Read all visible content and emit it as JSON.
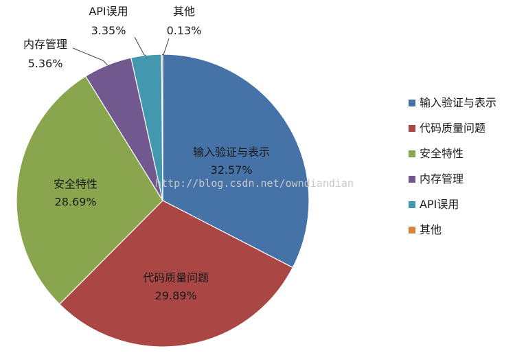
{
  "chart_data": {
    "type": "pie",
    "title": "",
    "legend_position": "right",
    "slices": [
      {
        "label": "输入验证与表示",
        "value": 32.57,
        "value_label": "32.57%",
        "color": "#4572A7"
      },
      {
        "label": "代码质量问题",
        "value": 29.89,
        "value_label": "29.89%",
        "color": "#AA4643"
      },
      {
        "label": "安全特性",
        "value": 28.69,
        "value_label": "28.69%",
        "color": "#89A54E"
      },
      {
        "label": "内存管理",
        "value": 5.36,
        "value_label": "5.36%",
        "color": "#71588F"
      },
      {
        "label": "API误用",
        "value": 3.35,
        "value_label": "3.35%",
        "color": "#4198AF"
      },
      {
        "label": "其他",
        "value": 0.13,
        "value_label": "0.13%",
        "color": "#DB843D"
      }
    ]
  },
  "watermark": "http://blog.csdn.net/owndiandian"
}
